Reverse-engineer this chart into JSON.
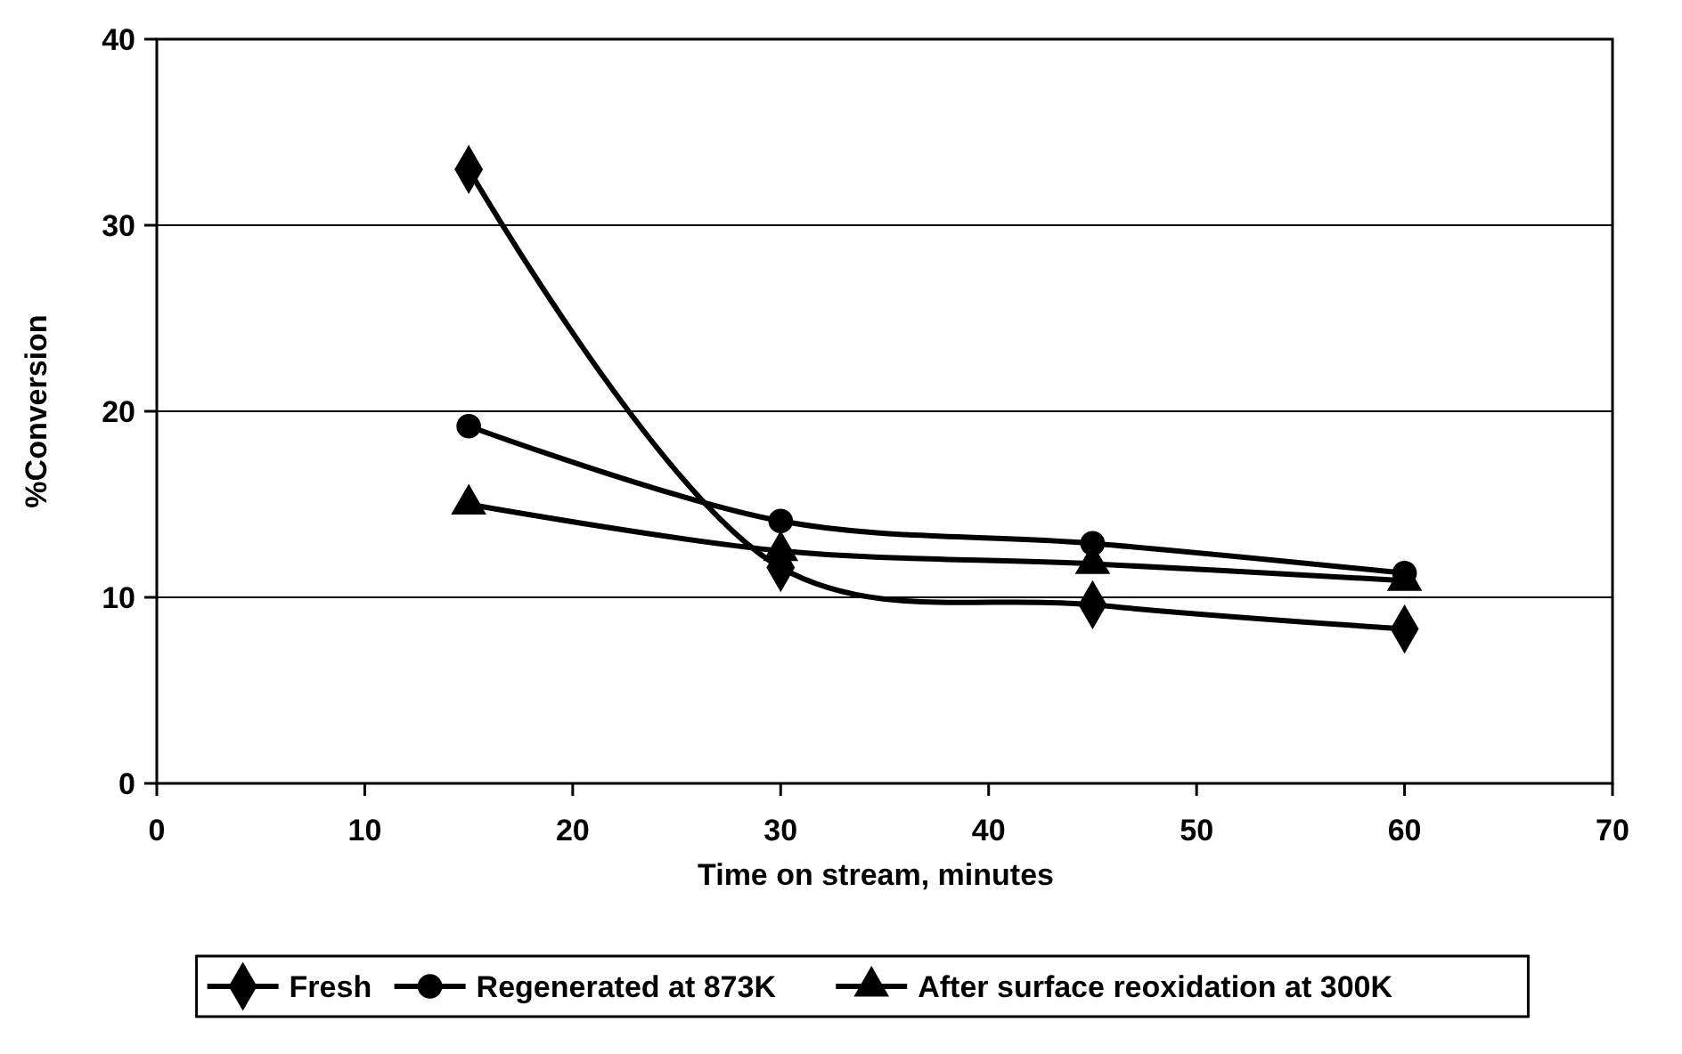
{
  "chart_data": {
    "type": "line",
    "xlabel": "Time on stream, minutes",
    "ylabel": "%Conversion",
    "x": [
      15,
      30,
      45,
      60
    ],
    "series": [
      {
        "name": "Fresh",
        "color": "#000000",
        "marker": "diamond",
        "values": [
          33,
          11.6,
          9.6,
          8.3
        ]
      },
      {
        "name": "Regenerated at 873K",
        "color": "#000000",
        "marker": "circle",
        "values": [
          19.2,
          14.1,
          12.9,
          11.3
        ]
      },
      {
        "name": "After surface reoxidation at 300K",
        "color": "#000000",
        "marker": "triangle",
        "values": [
          15,
          12.5,
          11.8,
          10.9
        ]
      }
    ],
    "xlim": [
      0,
      70
    ],
    "xticks": [
      0,
      10,
      20,
      30,
      40,
      50,
      60,
      70
    ],
    "ylim": [
      0,
      40
    ],
    "yticks": [
      0,
      10,
      20,
      30,
      40
    ],
    "grid": "y",
    "legend": "bottom",
    "line_style": "solid"
  }
}
